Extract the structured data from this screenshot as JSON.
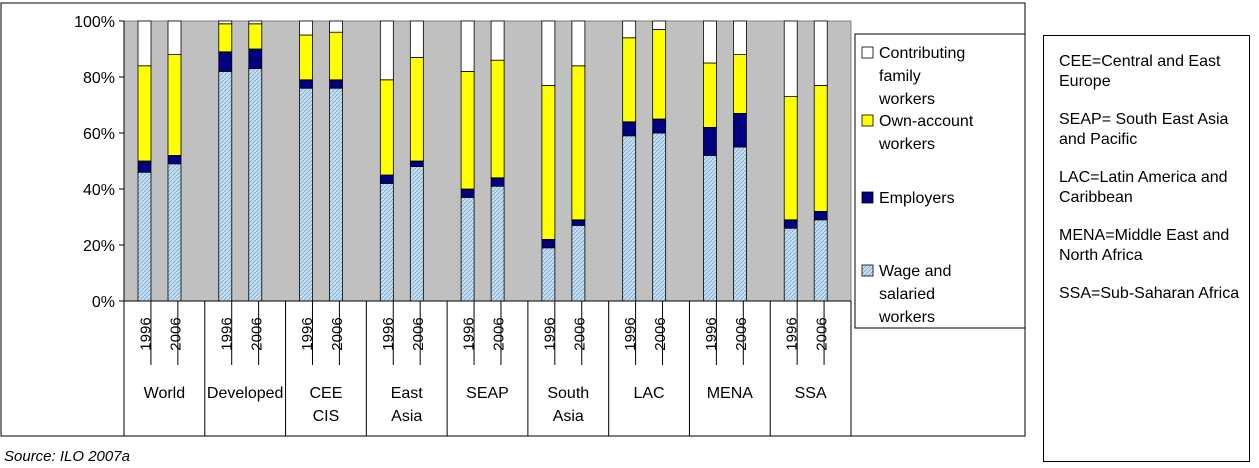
{
  "chart_data": {
    "type": "bar",
    "stacked": true,
    "percent": true,
    "yticks": [
      "0%",
      "20%",
      "40%",
      "60%",
      "80%",
      "100%"
    ],
    "ylim": [
      0,
      100
    ],
    "grid": false,
    "legend_position": "right",
    "groups": [
      {
        "label": "World",
        "years": [
          "1996",
          "2006"
        ]
      },
      {
        "label": "Developed",
        "years": [
          "1996",
          "2006"
        ]
      },
      {
        "label": "CEE CIS",
        "years": [
          "1996",
          "2006"
        ]
      },
      {
        "label": "East Asia",
        "years": [
          "1996",
          "2006"
        ]
      },
      {
        "label": "SEAP",
        "years": [
          "1996",
          "2006"
        ]
      },
      {
        "label": "South Asia",
        "years": [
          "1996",
          "2006"
        ]
      },
      {
        "label": "LAC",
        "years": [
          "1996",
          "2006"
        ]
      },
      {
        "label": "MENA",
        "years": [
          "1996",
          "2006"
        ]
      },
      {
        "label": "SSA",
        "years": [
          "1996",
          "2006"
        ]
      }
    ],
    "series": [
      {
        "name": "Wage and salaried workers",
        "color": "#bdd7ee",
        "values": [
          46,
          49,
          82,
          83,
          76,
          76,
          42,
          48,
          37,
          41,
          19,
          27,
          59,
          60,
          52,
          55,
          26,
          29
        ]
      },
      {
        "name": "Employers",
        "color": "#000080",
        "values": [
          4,
          3,
          7,
          7,
          3,
          3,
          3,
          2,
          3,
          3,
          3,
          2,
          5,
          5,
          10,
          12,
          3,
          3
        ]
      },
      {
        "name": "Own-account workers",
        "color": "#ffff00",
        "values": [
          34,
          36,
          10,
          9,
          16,
          17,
          34,
          37,
          42,
          42,
          55,
          55,
          30,
          32,
          23,
          21,
          44,
          45
        ]
      },
      {
        "name": "Contributing family workers",
        "color": "#ffffff",
        "values": [
          16,
          12,
          1,
          1,
          5,
          4,
          21,
          13,
          18,
          14,
          23,
          16,
          6,
          3,
          15,
          12,
          27,
          23
        ]
      }
    ],
    "plot_background": "#c0c0c0"
  },
  "notes": [
    "CEE=Central and East Europe",
    "SEAP= South East Asia and Pacific",
    "LAC=Latin America and Caribbean",
    "MENA=Middle East and North Africa",
    "SSA=Sub-Saharan Africa"
  ],
  "source": "Source: ILO 2007a"
}
